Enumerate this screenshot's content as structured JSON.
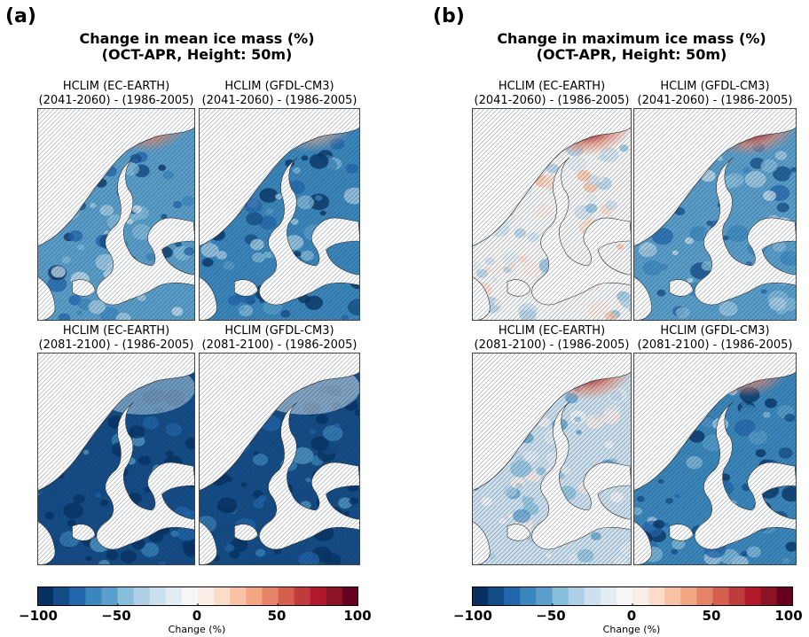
{
  "chart_data": [
    {
      "type": "heatmap",
      "panel_label": "(a)",
      "title_line1": "Change in mean ice mass (%)",
      "title_line2": "(OCT-APR, Height: 50m)",
      "maps": [
        {
          "line1": "HCLIM (EC-EARTH)",
          "line2": "(2041-2060) - (1986-2005)",
          "typical_change": -60,
          "north_max_change": 80
        },
        {
          "line1": "HCLIM (GFDL-CM3)",
          "line2": "(2041-2060) - (1986-2005)",
          "typical_change": -70,
          "north_max_change": 20
        },
        {
          "line1": "HCLIM (EC-EARTH)",
          "line2": "(2081-2100) - (1986-2005)",
          "typical_change": -90,
          "north_max_change": -40
        },
        {
          "line1": "HCLIM (GFDL-CM3)",
          "line2": "(2081-2100) - (1986-2005)",
          "typical_change": -90,
          "north_max_change": -30
        }
      ],
      "colorbar": {
        "ticks": [
          "−100",
          "−50",
          "0",
          "50",
          "100"
        ],
        "label": "Change (%)",
        "range": [
          -100,
          100
        ],
        "levels": 20
      }
    },
    {
      "type": "heatmap",
      "panel_label": "(b)",
      "title_line1": "Change in maximum ice mass (%)",
      "title_line2": "(OCT-APR, Height: 50m)",
      "maps": [
        {
          "line1": "HCLIM (EC-EARTH)",
          "line2": "(2041-2060) - (1986-2005)",
          "typical_change": -10,
          "north_max_change": 100
        },
        {
          "line1": "HCLIM (GFDL-CM3)",
          "line2": "(2041-2060) - (1986-2005)",
          "typical_change": -55,
          "north_max_change": 100
        },
        {
          "line1": "HCLIM (EC-EARTH)",
          "line2": "(2081-2100) - (1986-2005)",
          "typical_change": -25,
          "north_max_change": 100
        },
        {
          "line1": "HCLIM (GFDL-CM3)",
          "line2": "(2081-2100) - (1986-2005)",
          "typical_change": -70,
          "north_max_change": 80
        }
      ],
      "colorbar": {
        "ticks": [
          "−100",
          "−50",
          "0",
          "50",
          "100"
        ],
        "label": "Change (%)",
        "range": [
          -100,
          100
        ],
        "levels": 20
      }
    }
  ]
}
